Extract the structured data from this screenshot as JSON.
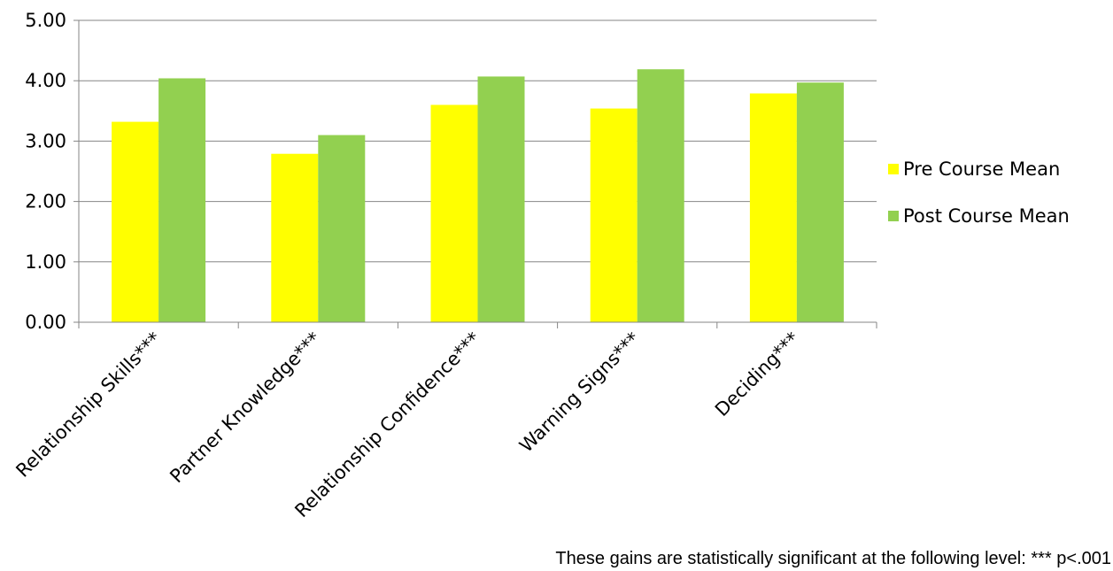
{
  "chart_data": {
    "type": "bar",
    "categories": [
      "Relationship Skills***",
      "Partner Knowledge***",
      "Relationship Confidence***",
      "Warning Signs***",
      "Deciding***"
    ],
    "series": [
      {
        "name": "Pre Course Mean",
        "color": "#FFFF00",
        "values": [
          3.32,
          2.79,
          3.6,
          3.54,
          3.79
        ]
      },
      {
        "name": "Post Course Mean",
        "color": "#92D050",
        "values": [
          4.04,
          3.1,
          4.07,
          4.19,
          3.97
        ]
      }
    ],
    "yticks": [
      "0.00",
      "1.00",
      "2.00",
      "3.00",
      "4.00",
      "5.00"
    ],
    "ylim": [
      0,
      5
    ],
    "grid": true,
    "legend_position": "right",
    "title": "",
    "xlabel": "",
    "ylabel": ""
  },
  "footnote": "These gains are statistically significant at the following level: *** p<.001"
}
